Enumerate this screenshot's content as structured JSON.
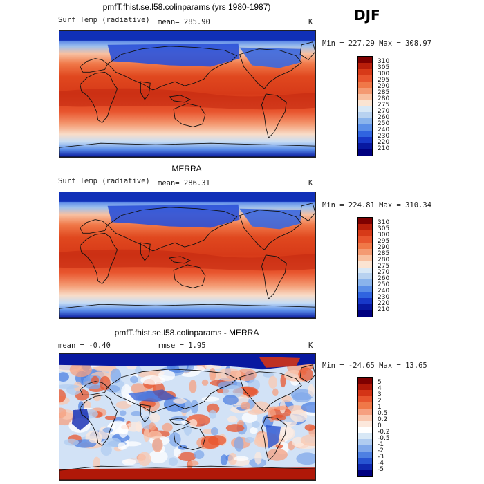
{
  "season": "DJF",
  "panels": [
    {
      "id": "model",
      "title": "pmfT.fhist.se.l58.colinparams (yrs 1980-1987)",
      "var_label": "Surf Temp (radiative)",
      "stat1": "mean= 285.90",
      "stat2": "",
      "units": "K",
      "minmax": "Min = 227.29 Max = 308.97",
      "colorbar": {
        "labels": [
          "310",
          "305",
          "300",
          "295",
          "290",
          "285",
          "280",
          "275",
          "270",
          "260",
          "250",
          "240",
          "230",
          "220",
          "210"
        ],
        "colors": [
          "#7f0000",
          "#b81e0a",
          "#d73a18",
          "#e8552e",
          "#f07848",
          "#f49a72",
          "#f8c0a0",
          "#fbe4d2",
          "#d8e8f6",
          "#b8d2f0",
          "#8ab4ec",
          "#5a8ee8",
          "#3064e0",
          "#1838c8",
          "#0818a0",
          "#000080"
        ]
      }
    },
    {
      "id": "obs",
      "title": "MERRA",
      "var_label": "Surf Temp (radiative)",
      "stat1": "mean= 286.31",
      "stat2": "",
      "units": "K",
      "minmax": "Min = 224.81 Max = 310.34",
      "colorbar": {
        "labels": [
          "310",
          "305",
          "300",
          "295",
          "290",
          "285",
          "280",
          "275",
          "270",
          "260",
          "250",
          "240",
          "230",
          "220",
          "210"
        ],
        "colors": [
          "#7f0000",
          "#b81e0a",
          "#d73a18",
          "#e8552e",
          "#f07848",
          "#f49a72",
          "#f8c0a0",
          "#fbe4d2",
          "#d8e8f6",
          "#b8d2f0",
          "#8ab4ec",
          "#5a8ee8",
          "#3064e0",
          "#1838c8",
          "#0818a0",
          "#000080"
        ]
      }
    },
    {
      "id": "diff",
      "title": "pmfT.fhist.se.l58.colinparams - MERRA",
      "var_label": "",
      "stat1": "mean =   -0.40",
      "stat2": "rmse =    1.95",
      "units": "K",
      "minmax": "Min = -24.65 Max =   13.65",
      "colorbar": {
        "labels": [
          "5",
          "4",
          "3",
          "2",
          "1",
          "0.5",
          "0.2",
          "0",
          "-0.2",
          "-0.5",
          "-1",
          "-2",
          "-3",
          "-4",
          "-5"
        ],
        "colors": [
          "#7f0000",
          "#b01808",
          "#d43416",
          "#e8552e",
          "#f07848",
          "#f6a080",
          "#f9c8b0",
          "#fce8dc",
          "#ffffff",
          "#d8e8f6",
          "#b0ccf0",
          "#80a8ea",
          "#4e80e2",
          "#2854d2",
          "#1028b0",
          "#000080"
        ]
      }
    }
  ]
}
